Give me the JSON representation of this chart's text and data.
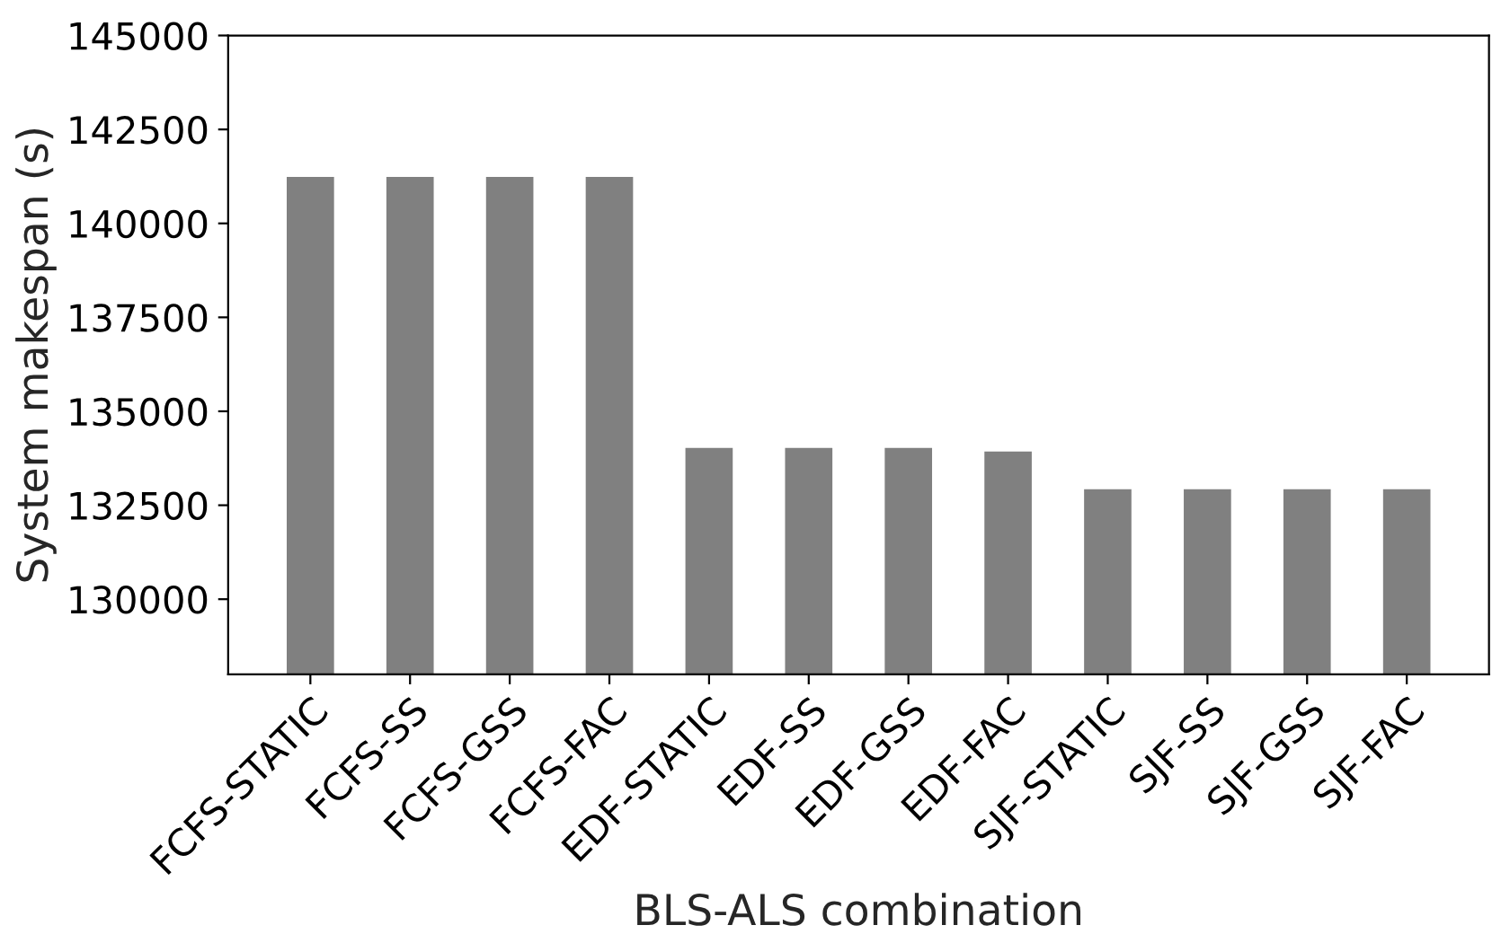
{
  "chart_data": {
    "type": "bar",
    "xlabel": "BLS-ALS combination",
    "ylabel": "System makespan (s)",
    "categories": [
      "FCFS-STATIC",
      "FCFS-SS",
      "FCFS-GSS",
      "FCFS-FAC",
      "EDF-STATIC",
      "EDF-SS",
      "EDF-GSS",
      "EDF-FAC",
      "SJF-STATIC",
      "SJF-SS",
      "SJF-GSS",
      "SJF-FAC"
    ],
    "values": [
      141270,
      141270,
      141270,
      141270,
      134060,
      134060,
      134060,
      133960,
      132960,
      132960,
      132960,
      132960
    ],
    "color": "#808080",
    "ylim": [
      128000,
      145000
    ],
    "yticks": [
      130000,
      132500,
      135000,
      137500,
      140000,
      142500,
      145000
    ],
    "grid": false,
    "legend": false
  }
}
